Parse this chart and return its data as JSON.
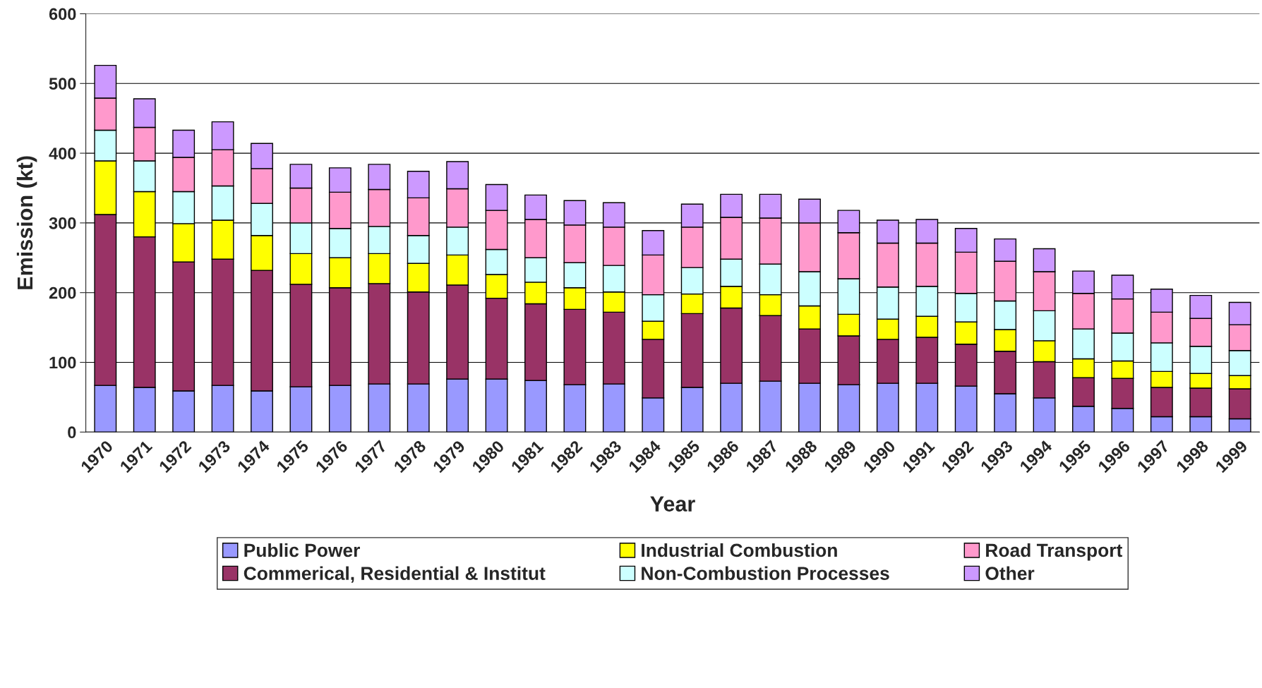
{
  "chart_data": {
    "type": "bar",
    "stacked": true,
    "xlabel": "Year",
    "ylabel": "Emission (kt)",
    "categories": [
      "1970",
      "1971",
      "1972",
      "1973",
      "1974",
      "1975",
      "1976",
      "1977",
      "1978",
      "1979",
      "1980",
      "1981",
      "1982",
      "1983",
      "1984",
      "1985",
      "1986",
      "1987",
      "1988",
      "1989",
      "1990",
      "1991",
      "1992",
      "1993",
      "1994",
      "1995",
      "1996",
      "1997",
      "1998",
      "1999"
    ],
    "ylim": [
      0,
      600
    ],
    "yticks": [
      0,
      100,
      200,
      300,
      400,
      500,
      600
    ],
    "grid": "y",
    "legend": "bottom",
    "series": [
      {
        "name": "Public Power",
        "color": "#9999ff",
        "values": [
          67,
          64,
          59,
          67,
          59,
          65,
          67,
          69,
          69,
          76,
          76,
          74,
          68,
          69,
          49,
          64,
          70,
          73,
          70,
          68,
          70,
          70,
          66,
          55,
          49,
          37,
          34,
          22,
          22,
          19
        ]
      },
      {
        "name": "Commerical, Residential & Institut",
        "color": "#993366",
        "values": [
          245,
          216,
          185,
          181,
          173,
          147,
          140,
          144,
          132,
          135,
          116,
          110,
          108,
          103,
          84,
          106,
          108,
          94,
          78,
          70,
          63,
          66,
          60,
          61,
          52,
          41,
          43,
          42,
          41,
          43
        ]
      },
      {
        "name": "Industrial Combustion",
        "color": "#ffff00",
        "values": [
          77,
          65,
          55,
          56,
          50,
          44,
          43,
          43,
          41,
          43,
          34,
          31,
          31,
          29,
          26,
          28,
          31,
          30,
          33,
          31,
          29,
          30,
          32,
          31,
          30,
          27,
          25,
          23,
          21,
          19
        ]
      },
      {
        "name": "Non-Combustion Processes",
        "color": "#ccffff",
        "values": [
          44,
          44,
          46,
          49,
          46,
          44,
          42,
          39,
          40,
          40,
          36,
          35,
          36,
          38,
          38,
          38,
          39,
          44,
          49,
          51,
          46,
          43,
          41,
          41,
          43,
          43,
          40,
          41,
          39,
          36
        ]
      },
      {
        "name": "Road Transport",
        "color": "#ff99cc",
        "values": [
          46,
          48,
          49,
          52,
          50,
          50,
          52,
          53,
          54,
          55,
          56,
          55,
          54,
          55,
          57,
          58,
          60,
          66,
          70,
          66,
          63,
          62,
          59,
          57,
          56,
          51,
          49,
          44,
          40,
          37
        ]
      },
      {
        "name": "Other",
        "color": "#cc99ff",
        "values": [
          47,
          41,
          39,
          40,
          36,
          34,
          35,
          36,
          38,
          39,
          37,
          35,
          35,
          35,
          35,
          33,
          33,
          34,
          34,
          32,
          33,
          34,
          34,
          32,
          33,
          32,
          34,
          33,
          33,
          32
        ]
      }
    ]
  }
}
